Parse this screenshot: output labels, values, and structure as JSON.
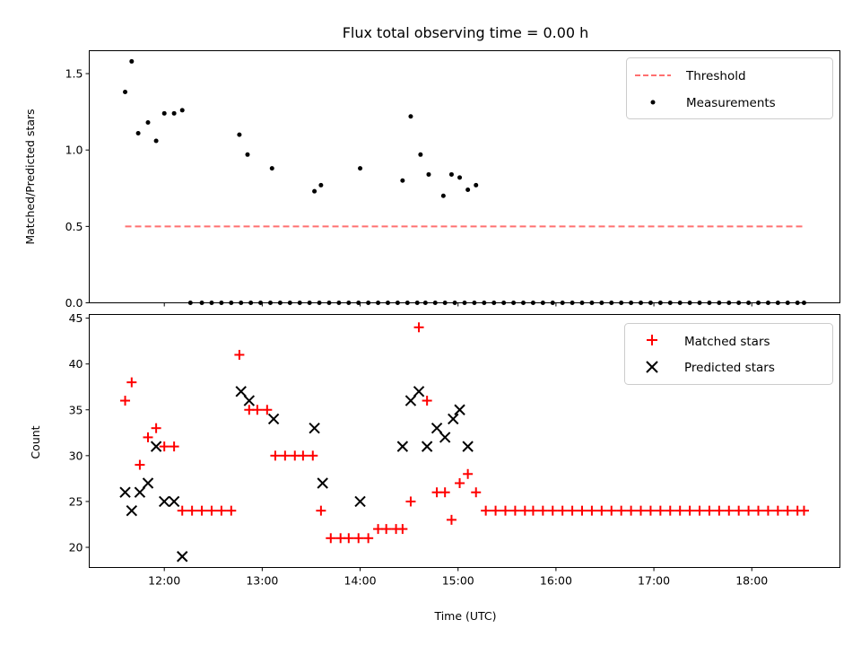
{
  "chart_data": [
    {
      "type": "scatter",
      "title": "Flux total observing time = 0.00 h",
      "xlabel": "",
      "ylabel": "Matched/Predicted stars",
      "ylim": [
        0,
        1.65
      ],
      "yticks": [
        "0.0",
        "0.5",
        "1.0",
        "1.5"
      ],
      "yticks_values": [
        0,
        0.5,
        1.0,
        1.5
      ],
      "legend_position": "top-right",
      "legend": [
        "Threshold",
        "Measurements"
      ],
      "threshold": {
        "name": "Threshold",
        "x_start": "11:36",
        "x_end": "18:32",
        "value": 0.5,
        "color": "#ff7070"
      },
      "measurements": {
        "name": "Measurements",
        "color": "#000000",
        "x": [
          "11:36",
          "11:40",
          "11:44",
          "11:50",
          "11:55",
          "12:00",
          "12:06",
          "12:11",
          "12:16",
          "12:23",
          "12:29",
          "12:35",
          "12:41",
          "12:47",
          "12:53",
          "12:59",
          "13:05",
          "13:11",
          "13:17",
          "13:23",
          "13:29",
          "13:35",
          "13:41",
          "13:47",
          "13:53",
          "13:59",
          "14:05",
          "14:11",
          "14:17",
          "14:23",
          "14:29",
          "14:35",
          "14:40",
          "14:46",
          "14:52",
          "14:58",
          "15:04",
          "15:10",
          "15:16",
          "15:22",
          "15:28",
          "15:34",
          "15:40",
          "15:46",
          "15:52",
          "15:58",
          "16:04",
          "16:10",
          "16:16",
          "16:22",
          "16:28",
          "16:34",
          "16:40",
          "16:46",
          "16:52",
          "16:58",
          "17:04",
          "17:10",
          "17:16",
          "17:22",
          "17:28",
          "17:34",
          "17:40",
          "17:46",
          "17:52",
          "17:58",
          "18:04",
          "18:10",
          "18:16",
          "18:22",
          "18:28",
          "18:32",
          "12:46",
          "12:51",
          "13:06",
          "13:32",
          "13:36",
          "14:00",
          "14:26",
          "14:31",
          "14:37",
          "14:42",
          "14:51",
          "14:56",
          "15:01",
          "15:06",
          "15:11"
        ],
        "y": [
          1.38,
          1.58,
          1.11,
          1.18,
          1.06,
          1.24,
          1.24,
          1.26,
          0,
          0,
          0,
          0,
          0,
          0,
          0,
          0,
          0,
          0,
          0,
          0,
          0,
          0,
          0,
          0,
          0,
          0,
          0,
          0,
          0,
          0,
          0,
          0,
          0,
          0,
          0,
          0,
          0,
          0,
          0,
          0,
          0,
          0,
          0,
          0,
          0,
          0,
          0,
          0,
          0,
          0,
          0,
          0,
          0,
          0,
          0,
          0,
          0,
          0,
          0,
          0,
          0,
          0,
          0,
          0,
          0,
          0,
          0,
          0,
          0,
          0,
          0,
          0,
          1.1,
          0.97,
          0.88,
          0.73,
          0.77,
          0.88,
          0.8,
          1.22,
          0.97,
          0.84,
          0.7,
          0.84,
          0.82,
          0.74,
          0.77
        ]
      }
    },
    {
      "type": "scatter",
      "title": "",
      "xlabel": "Time (UTC)",
      "ylabel": "Count",
      "ylim": [
        17.8,
        45.4
      ],
      "xlim": [
        "11:14",
        "18:54"
      ],
      "xticks": [
        "12:00",
        "13:00",
        "14:00",
        "15:00",
        "16:00",
        "17:00",
        "18:00"
      ],
      "yticks": [
        "20",
        "25",
        "30",
        "35",
        "40",
        "45"
      ],
      "yticks_values": [
        20,
        25,
        30,
        35,
        40,
        45
      ],
      "legend_position": "top-right",
      "legend": [
        "Matched stars",
        "Predicted stars"
      ],
      "series": [
        {
          "name": "Matched stars",
          "marker": "plus",
          "color": "#ff0000",
          "x": [
            "11:36",
            "11:40",
            "11:45",
            "11:50",
            "11:55",
            "12:00",
            "12:06",
            "12:11",
            "12:17",
            "12:23",
            "12:29",
            "12:35",
            "12:41",
            "12:46",
            "12:52",
            "12:57",
            "13:03",
            "13:08",
            "13:14",
            "13:20",
            "13:25",
            "13:31",
            "13:36",
            "13:42",
            "13:48",
            "13:53",
            "13:59",
            "14:05",
            "14:11",
            "14:16",
            "14:22",
            "14:26",
            "14:31",
            "14:36",
            "14:41",
            "14:47",
            "14:52",
            "14:56",
            "15:01",
            "15:06",
            "15:11",
            "15:17",
            "15:23",
            "15:29",
            "15:35",
            "15:41",
            "15:46",
            "15:52",
            "15:58",
            "16:04",
            "16:10",
            "16:16",
            "16:22",
            "16:28",
            "16:34",
            "16:40",
            "16:46",
            "16:52",
            "16:58",
            "17:04",
            "17:10",
            "17:16",
            "17:22",
            "17:28",
            "17:34",
            "17:40",
            "17:46",
            "17:52",
            "17:58",
            "18:04",
            "18:10",
            "18:16",
            "18:22",
            "18:28",
            "18:32"
          ],
          "y": [
            36,
            38,
            29,
            32,
            33,
            31,
            31,
            24,
            24,
            24,
            24,
            24,
            24,
            41,
            35,
            35,
            35,
            30,
            30,
            30,
            30,
            30,
            24,
            21,
            21,
            21,
            21,
            21,
            22,
            22,
            22,
            22,
            25,
            44,
            36,
            26,
            26,
            23,
            27,
            28,
            26,
            24,
            24,
            24,
            24,
            24,
            24,
            24,
            24,
            24,
            24,
            24,
            24,
            24,
            24,
            24,
            24,
            24,
            24,
            24,
            24,
            24,
            24,
            24,
            24,
            24,
            24,
            24,
            24,
            24,
            24,
            24,
            24,
            24,
            24
          ]
        },
        {
          "name": "Predicted stars",
          "marker": "x",
          "color": "#000000",
          "x": [
            "11:36",
            "11:40",
            "11:45",
            "11:50",
            "11:55",
            "12:00",
            "12:06",
            "12:11",
            "12:47",
            "12:52",
            "13:07",
            "13:32",
            "13:37",
            "14:00",
            "14:26",
            "14:31",
            "14:36",
            "14:41",
            "14:47",
            "14:52",
            "14:57",
            "15:01",
            "15:06"
          ],
          "y": [
            26,
            24,
            26,
            27,
            31,
            25,
            25,
            19,
            37,
            36,
            34,
            33,
            27,
            25,
            31,
            36,
            37,
            31,
            33,
            32,
            34,
            35,
            31
          ]
        }
      ]
    }
  ]
}
